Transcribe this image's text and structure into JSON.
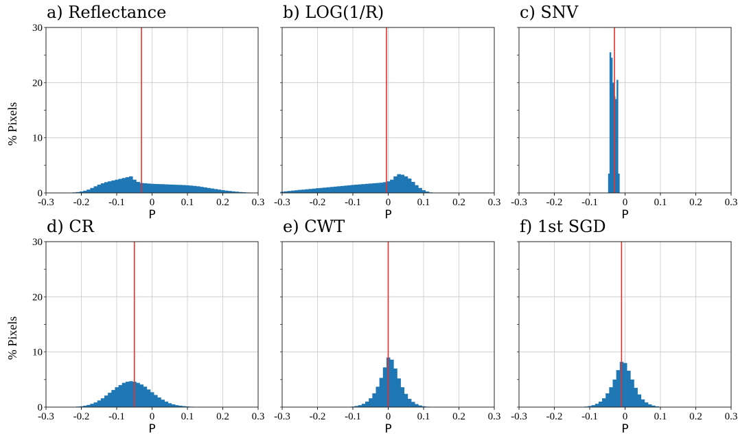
{
  "figure": {
    "bar_color": "#1f77b4",
    "line_color": "#e8302a",
    "grid": true
  },
  "chart_data": [
    {
      "type": "bar",
      "title": "a) Reflectance",
      "xlabel": "P",
      "ylabel": "% Pixels",
      "xlim": [
        -0.3,
        0.3
      ],
      "ylim": [
        0,
        30
      ],
      "xticks": [
        "-0.3",
        "-0.2",
        "-0.1",
        "0",
        "0.1",
        "0.2",
        "0.3"
      ],
      "yticks": [
        "0",
        "10",
        "20",
        "30"
      ],
      "vline": -0.03,
      "x": [
        -0.23,
        -0.22,
        -0.21,
        -0.2,
        -0.19,
        -0.18,
        -0.17,
        -0.16,
        -0.15,
        -0.14,
        -0.13,
        -0.12,
        -0.11,
        -0.1,
        -0.09,
        -0.08,
        -0.07,
        -0.06,
        -0.05,
        -0.04,
        -0.03,
        -0.02,
        -0.01,
        0,
        0.01,
        0.02,
        0.03,
        0.04,
        0.05,
        0.06,
        0.07,
        0.08,
        0.09,
        0.1,
        0.11,
        0.12,
        0.13,
        0.14,
        0.15,
        0.16,
        0.17,
        0.18,
        0.19,
        0.2,
        0.21,
        0.22,
        0.23,
        0.24,
        0.25,
        0.26,
        0.27,
        0.28,
        0.29
      ],
      "values": [
        0.05,
        0.1,
        0.15,
        0.25,
        0.4,
        0.6,
        0.9,
        1.2,
        1.5,
        1.75,
        1.95,
        2.1,
        2.25,
        2.4,
        2.55,
        2.7,
        2.85,
        3.0,
        2.4,
        2.0,
        1.8,
        1.75,
        1.7,
        1.65,
        1.62,
        1.6,
        1.58,
        1.55,
        1.52,
        1.5,
        1.47,
        1.45,
        1.42,
        1.38,
        1.33,
        1.27,
        1.2,
        1.1,
        1.0,
        0.9,
        0.8,
        0.7,
        0.6,
        0.5,
        0.42,
        0.35,
        0.28,
        0.22,
        0.16,
        0.12,
        0.08,
        0.05,
        0.03
      ]
    },
    {
      "type": "bar",
      "title": "b) LOG(1/R)",
      "xlabel": "P",
      "ylabel": "",
      "xlim": [
        -0.3,
        0.3
      ],
      "ylim": [
        0,
        30
      ],
      "xticks": [
        "-0.3",
        "-0.2",
        "-0.1",
        "0",
        "0.1",
        "0.2",
        "0.3"
      ],
      "yticks": [],
      "vline": -0.005,
      "x": [
        -0.3,
        -0.29,
        -0.28,
        -0.27,
        -0.26,
        -0.25,
        -0.24,
        -0.23,
        -0.22,
        -0.21,
        -0.2,
        -0.19,
        -0.18,
        -0.17,
        -0.16,
        -0.15,
        -0.14,
        -0.13,
        -0.12,
        -0.11,
        -0.1,
        -0.09,
        -0.08,
        -0.07,
        -0.06,
        -0.05,
        -0.04,
        -0.03,
        -0.02,
        -0.01,
        0,
        0.01,
        0.02,
        0.03,
        0.04,
        0.05,
        0.06,
        0.07,
        0.08,
        0.09,
        0.1,
        0.11,
        0.12,
        0.13
      ],
      "values": [
        0.2,
        0.28,
        0.35,
        0.42,
        0.48,
        0.55,
        0.6,
        0.66,
        0.72,
        0.78,
        0.85,
        0.9,
        0.96,
        1.02,
        1.08,
        1.14,
        1.2,
        1.26,
        1.32,
        1.38,
        1.45,
        1.5,
        1.55,
        1.6,
        1.65,
        1.7,
        1.75,
        1.8,
        1.85,
        1.95,
        2.1,
        2.4,
        3.0,
        3.4,
        3.3,
        3.0,
        2.6,
        2.0,
        1.4,
        0.9,
        0.5,
        0.25,
        0.1,
        0.04
      ]
    },
    {
      "type": "bar",
      "title": "c) SNV",
      "xlabel": "P",
      "ylabel": "",
      "xlim": [
        -0.3,
        0.3
      ],
      "ylim": [
        0,
        30
      ],
      "xticks": [
        "-0.3",
        "-0.2",
        "-0.1",
        "0",
        "0.1",
        "0.2",
        "0.3"
      ],
      "yticks": [],
      "vline": -0.03,
      "x": [
        -0.046,
        -0.042,
        -0.038,
        -0.034,
        -0.03,
        -0.026,
        -0.022,
        -0.018
      ],
      "values": [
        3.5,
        25.5,
        24.5,
        20.0,
        17.5,
        17.0,
        20.5,
        3.5
      ]
    },
    {
      "type": "bar",
      "title": "d) CR",
      "xlabel": "P",
      "ylabel": "% Pixels",
      "xlim": [
        -0.3,
        0.3
      ],
      "ylim": [
        0,
        30
      ],
      "xticks": [
        "-0.3",
        "-0.2",
        "-0.1",
        "0",
        "0.1",
        "0.2",
        "0.3"
      ],
      "yticks": [
        "0",
        "10",
        "20",
        "30"
      ],
      "vline": -0.05,
      "x": [
        -0.22,
        -0.21,
        -0.2,
        -0.19,
        -0.18,
        -0.17,
        -0.16,
        -0.15,
        -0.14,
        -0.13,
        -0.12,
        -0.11,
        -0.1,
        -0.09,
        -0.08,
        -0.07,
        -0.06,
        -0.05,
        -0.04,
        -0.03,
        -0.02,
        -0.01,
        0,
        0.01,
        0.02,
        0.03,
        0.04,
        0.05,
        0.06,
        0.07,
        0.08,
        0.09,
        0.1,
        0.11,
        0.12,
        0.13,
        0.14,
        0.15,
        0.16
      ],
      "values": [
        0.05,
        0.1,
        0.15,
        0.25,
        0.4,
        0.6,
        0.85,
        1.2,
        1.6,
        2.1,
        2.6,
        3.1,
        3.6,
        4.0,
        4.4,
        4.6,
        4.7,
        4.6,
        4.4,
        4.1,
        3.7,
        3.2,
        2.7,
        2.2,
        1.75,
        1.35,
        1.0,
        0.7,
        0.5,
        0.35,
        0.25,
        0.18,
        0.12,
        0.08,
        0.06,
        0.04,
        0.03,
        0.02,
        0.01
      ]
    },
    {
      "type": "bar",
      "title": "e) CWT",
      "xlabel": "P",
      "ylabel": "",
      "xlim": [
        -0.3,
        0.3
      ],
      "ylim": [
        0,
        30
      ],
      "xticks": [
        "-0.3",
        "-0.2",
        "-0.1",
        "0",
        "0.1",
        "0.2",
        "0.3"
      ],
      "yticks": [],
      "vline": 0.0,
      "x": [
        -0.12,
        -0.11,
        -0.1,
        -0.09,
        -0.08,
        -0.07,
        -0.06,
        -0.05,
        -0.04,
        -0.03,
        -0.02,
        -0.01,
        0,
        0.01,
        0.02,
        0.03,
        0.04,
        0.05,
        0.06,
        0.07,
        0.08,
        0.09,
        0.1,
        0.11,
        0.12,
        0.13
      ],
      "values": [
        0.02,
        0.05,
        0.1,
        0.2,
        0.35,
        0.6,
        1.0,
        1.6,
        2.5,
        3.7,
        5.3,
        7.2,
        9.0,
        8.6,
        7.0,
        5.2,
        3.6,
        2.4,
        1.5,
        0.95,
        0.55,
        0.3,
        0.15,
        0.08,
        0.04,
        0.02
      ]
    },
    {
      "type": "bar",
      "title": "f) 1st SGD",
      "xlabel": "P",
      "ylabel": "",
      "xlim": [
        -0.3,
        0.3
      ],
      "ylim": [
        0,
        30
      ],
      "xticks": [
        "-0.3",
        "-0.2",
        "-0.1",
        "0",
        "0.1",
        "0.2",
        "0.3"
      ],
      "yticks": [],
      "vline": -0.01,
      "x": [
        -0.13,
        -0.12,
        -0.11,
        -0.1,
        -0.09,
        -0.08,
        -0.07,
        -0.06,
        -0.05,
        -0.04,
        -0.03,
        -0.02,
        -0.01,
        0,
        0.01,
        0.02,
        0.03,
        0.04,
        0.05,
        0.06,
        0.07,
        0.08,
        0.09,
        0.1,
        0.11,
        0.12
      ],
      "values": [
        0.02,
        0.05,
        0.1,
        0.2,
        0.35,
        0.6,
        1.0,
        1.6,
        2.5,
        3.6,
        5.0,
        6.7,
        8.2,
        8.0,
        6.6,
        5.0,
        3.5,
        2.3,
        1.4,
        0.85,
        0.5,
        0.28,
        0.14,
        0.07,
        0.03,
        0.01
      ]
    }
  ]
}
